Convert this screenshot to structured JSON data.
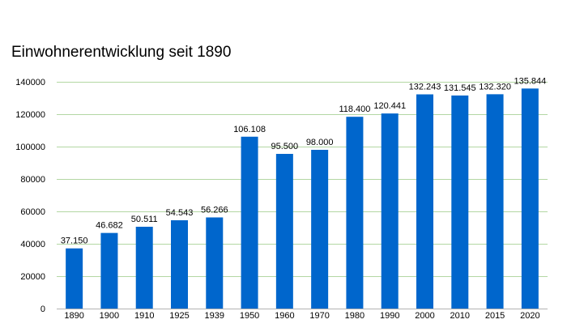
{
  "chart_data": {
    "type": "bar",
    "title": "Einwohnerentwicklung seit 1890",
    "xlabel": "",
    "ylabel": "",
    "categories": [
      "1890",
      "1900",
      "1910",
      "1925",
      "1939",
      "1950",
      "1960",
      "1970",
      "1980",
      "1990",
      "2000",
      "2010",
      "2015",
      "2020"
    ],
    "values": [
      37150,
      46682,
      50511,
      54543,
      56266,
      106108,
      95500,
      98000,
      118400,
      120441,
      132243,
      131545,
      132320,
      135844
    ],
    "data_labels": [
      "37.150",
      "46.682",
      "50.511",
      "54.543",
      "56.266",
      "106.108",
      "95.500",
      "98.000",
      "118.400",
      "120.441",
      "132.243",
      "131.545",
      "132.320",
      "135.844"
    ],
    "ylim": [
      0,
      140000
    ],
    "yticks": [
      0,
      20000,
      40000,
      60000,
      80000,
      100000,
      120000,
      140000
    ],
    "ytick_labels": [
      "0",
      "20000",
      "40000",
      "60000",
      "80000",
      "100000",
      "120000",
      "140000"
    ],
    "grid": true,
    "legend": "none",
    "colors": {
      "bar": "#0066cc",
      "grid": "#b3d7a3",
      "axis": "#b3b3b3"
    }
  }
}
